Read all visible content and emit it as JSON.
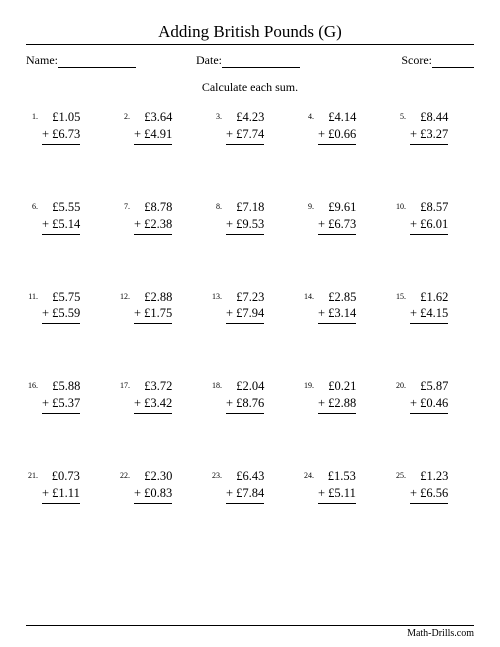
{
  "title": "Adding British Pounds (G)",
  "meta": {
    "name_label": "Name:",
    "date_label": "Date:",
    "score_label": "Score:"
  },
  "instruction": "Calculate each sum.",
  "footer": "Math-Drills.com",
  "problems": [
    {
      "n": "1.",
      "a": "£1.05",
      "b": "+ £6.73"
    },
    {
      "n": "2.",
      "a": "£3.64",
      "b": "+ £4.91"
    },
    {
      "n": "3.",
      "a": "£4.23",
      "b": "+ £7.74"
    },
    {
      "n": "4.",
      "a": "£4.14",
      "b": "+ £0.66"
    },
    {
      "n": "5.",
      "a": "£8.44",
      "b": "+ £3.27"
    },
    {
      "n": "6.",
      "a": "£5.55",
      "b": "+ £5.14"
    },
    {
      "n": "7.",
      "a": "£8.78",
      "b": "+ £2.38"
    },
    {
      "n": "8.",
      "a": "£7.18",
      "b": "+ £9.53"
    },
    {
      "n": "9.",
      "a": "£9.61",
      "b": "+ £6.73"
    },
    {
      "n": "10.",
      "a": "£8.57",
      "b": "+ £6.01"
    },
    {
      "n": "11.",
      "a": "£5.75",
      "b": "+ £5.59"
    },
    {
      "n": "12.",
      "a": "£2.88",
      "b": "+ £1.75"
    },
    {
      "n": "13.",
      "a": "£7.23",
      "b": "+ £7.94"
    },
    {
      "n": "14.",
      "a": "£2.85",
      "b": "+ £3.14"
    },
    {
      "n": "15.",
      "a": "£1.62",
      "b": "+ £4.15"
    },
    {
      "n": "16.",
      "a": "£5.88",
      "b": "+ £5.37"
    },
    {
      "n": "17.",
      "a": "£3.72",
      "b": "+ £3.42"
    },
    {
      "n": "18.",
      "a": "£2.04",
      "b": "+ £8.76"
    },
    {
      "n": "19.",
      "a": "£0.21",
      "b": "+ £2.88"
    },
    {
      "n": "20.",
      "a": "£5.87",
      "b": "+ £0.46"
    },
    {
      "n": "21.",
      "a": "£0.73",
      "b": "+ £1.11"
    },
    {
      "n": "22.",
      "a": "£2.30",
      "b": "+ £0.83"
    },
    {
      "n": "23.",
      "a": "£6.43",
      "b": "+ £7.84"
    },
    {
      "n": "24.",
      "a": "£1.53",
      "b": "+ £5.11"
    },
    {
      "n": "25.",
      "a": "£1.23",
      "b": "+ £6.56"
    }
  ]
}
